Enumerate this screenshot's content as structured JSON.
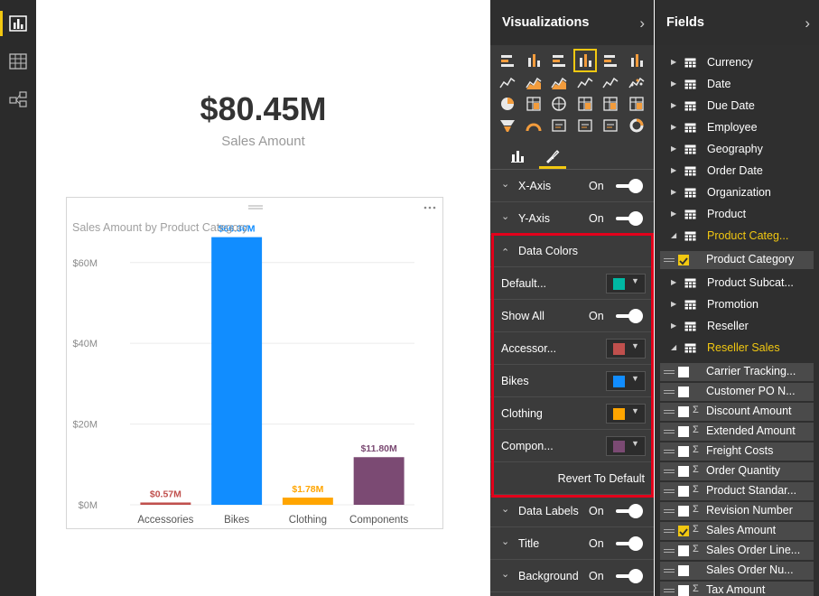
{
  "rail": {
    "items": [
      "report-view",
      "data-view",
      "relationships-view"
    ]
  },
  "card": {
    "value": "$80.45M",
    "label": "Sales Amount"
  },
  "chart": {
    "title": "Sales Amount by Product Category"
  },
  "chart_data": {
    "type": "bar",
    "title": "Sales Amount by Product Category",
    "xlabel": "",
    "ylabel": "",
    "categories": [
      "Accessories",
      "Bikes",
      "Clothing",
      "Components"
    ],
    "values": [
      0.57,
      66.3,
      1.78,
      11.8
    ],
    "data_labels": [
      "$0.57M",
      "$66.30M",
      "$1.78M",
      "$11.80M"
    ],
    "bar_colors": [
      "#c0504d",
      "#118dff",
      "#ffa500",
      "#7b4a73"
    ],
    "yticks": [
      0,
      20,
      40,
      60
    ],
    "ytick_labels": [
      "$0M",
      "$20M",
      "$40M",
      "$60M"
    ],
    "ylim": [
      0,
      68
    ],
    "grid": true,
    "legend": "none"
  },
  "viz": {
    "title": "Visualizations",
    "chevron": "›",
    "format_rows": {
      "x_axis": {
        "label": "X-Axis",
        "state": "On"
      },
      "y_axis": {
        "label": "Y-Axis",
        "state": "On"
      },
      "data_colors": {
        "label": "Data Colors"
      },
      "default": {
        "label": "Default...",
        "color": "#00b8a3"
      },
      "show_all": {
        "label": "Show All",
        "state": "On"
      },
      "accessories": {
        "label": "Accessor...",
        "color": "#c0504d"
      },
      "bikes": {
        "label": "Bikes",
        "color": "#118dff"
      },
      "clothing": {
        "label": "Clothing",
        "color": "#ffa500"
      },
      "components": {
        "label": "Compon...",
        "color": "#7b4a73"
      },
      "revert": "Revert To Default",
      "data_labels": {
        "label": "Data Labels",
        "state": "On"
      },
      "title": {
        "label": "Title",
        "state": "On"
      },
      "background": {
        "label": "Background",
        "state": "On"
      }
    }
  },
  "fields": {
    "title": "Fields",
    "chevron": "›",
    "tables": [
      "Currency",
      "Date",
      "Due Date",
      "Employee",
      "Geography",
      "Order Date",
      "Organization",
      "Product",
      "Product Categ..."
    ],
    "product_category_field": "Product Category",
    "tables2": [
      "Product Subcat...",
      "Promotion",
      "Reseller",
      "Reseller Sales"
    ],
    "reseller_fields": [
      {
        "name": "Carrier Tracking...",
        "sigma": false,
        "checked": false
      },
      {
        "name": "Customer PO N...",
        "sigma": false,
        "checked": false
      },
      {
        "name": "Discount Amount",
        "sigma": true,
        "checked": false
      },
      {
        "name": "Extended Amount",
        "sigma": true,
        "checked": false
      },
      {
        "name": "Freight Costs",
        "sigma": true,
        "checked": false
      },
      {
        "name": "Order Quantity",
        "sigma": true,
        "checked": false
      },
      {
        "name": "Product Standar...",
        "sigma": true,
        "checked": false
      },
      {
        "name": "Revision Number",
        "sigma": true,
        "checked": false
      },
      {
        "name": "Sales Amount",
        "sigma": true,
        "checked": true
      },
      {
        "name": "Sales Order Line...",
        "sigma": true,
        "checked": false
      },
      {
        "name": "Sales Order Nu...",
        "sigma": false,
        "checked": false
      },
      {
        "name": "Tax Amount",
        "sigma": true,
        "checked": false
      }
    ]
  },
  "sigma_glyph": "Σ"
}
